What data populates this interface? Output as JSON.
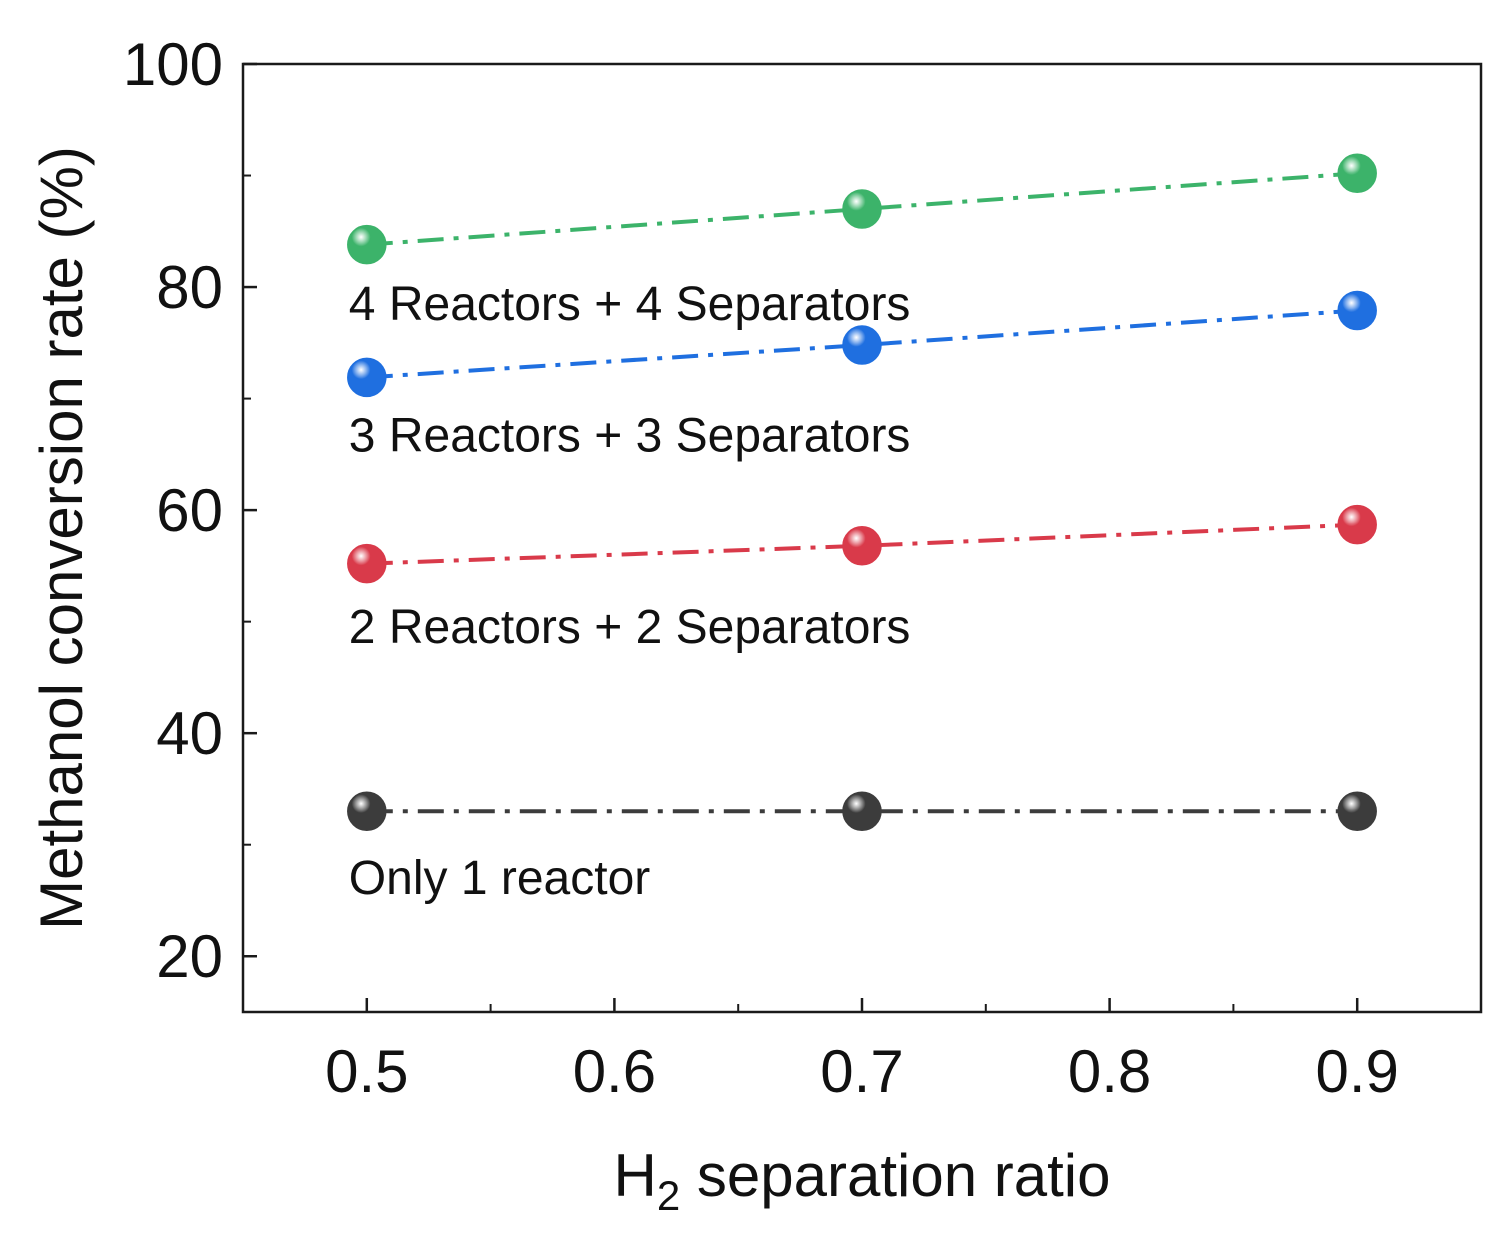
{
  "chart_data": {
    "type": "line",
    "title": "",
    "xlabel": {
      "main": "H",
      "subscript": "2",
      "rest": " separation ratio"
    },
    "ylabel": "Methanol conversion rate (%)",
    "x": [
      0.5,
      0.7,
      0.9
    ],
    "xlim": [
      0.45,
      0.95
    ],
    "ylim": [
      15,
      100
    ],
    "xticks": [
      0.5,
      0.6,
      0.7,
      0.8,
      0.9
    ],
    "xtick_labels": [
      "0.5",
      "0.6",
      "0.7",
      "0.8",
      "0.9"
    ],
    "yticks": [
      20,
      40,
      60,
      80,
      100
    ],
    "ytick_labels": [
      "20",
      "40",
      "60",
      "80",
      "100"
    ],
    "grid": false,
    "line_style": "dash-dot",
    "series": [
      {
        "name": "Only 1 reactor",
        "values": [
          33,
          33,
          33
        ],
        "color": "#3c3c3c",
        "label_near_value": 27
      },
      {
        "name": "2 Reactors + 2 Separators",
        "values": [
          55.2,
          56.8,
          58.7
        ],
        "color": "#d93a4a",
        "label_near_value": 49.5
      },
      {
        "name": "3 Reactors + 3 Separators",
        "values": [
          71.9,
          74.8,
          77.9
        ],
        "color": "#1f6fe0",
        "label_near_value": 66.7
      },
      {
        "name": "4 Reactors + 4 Separators",
        "values": [
          83.8,
          87.0,
          90.2
        ],
        "color": "#3cb36a",
        "label_near_value": 78.5
      }
    ]
  }
}
